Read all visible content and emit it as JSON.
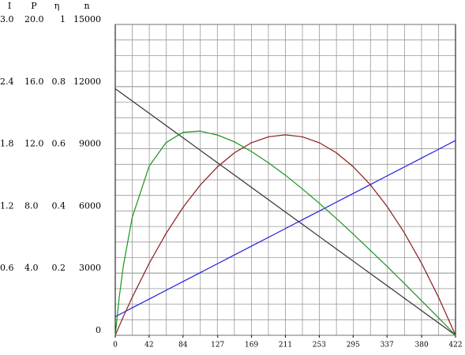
{
  "chart_data": {
    "type": "line",
    "y_axes": [
      {
        "label": "I",
        "ylim": [
          0,
          3
        ],
        "yticks": [
          {
            "value": 0.6,
            "label": "0.6"
          },
          {
            "value": 1.2,
            "label": "1.2"
          },
          {
            "value": 1.8,
            "label": "1.8"
          },
          {
            "value": 2.4,
            "label": "2.4"
          },
          {
            "value": 3,
            "label": "3.0"
          }
        ]
      },
      {
        "label": "P",
        "ylim": [
          0,
          20
        ],
        "yticks": [
          {
            "value": 4,
            "label": "4.0"
          },
          {
            "value": 8,
            "label": "8.0"
          },
          {
            "value": 12,
            "label": "12.0"
          },
          {
            "value": 16,
            "label": "16.0"
          },
          {
            "value": 20,
            "label": "20.0"
          }
        ]
      },
      {
        "label": "η",
        "ylim": [
          0,
          1
        ],
        "yticks": [
          0.2,
          0.4,
          0.6,
          0.8,
          1
        ]
      },
      {
        "label": "n",
        "ylim": [
          0,
          15000
        ],
        "yticks": [
          0,
          3000,
          6000,
          9000,
          12000,
          15000
        ]
      }
    ],
    "xlim": [
      0,
      422
    ],
    "xticks": [
      0,
      42,
      84,
      127,
      169,
      211,
      253,
      295,
      337,
      380,
      422
    ],
    "grid": true,
    "x": [
      0,
      5,
      10,
      21,
      42,
      63,
      84,
      105,
      127,
      148,
      169,
      190,
      211,
      232,
      253,
      274,
      295,
      316,
      337,
      358,
      380,
      401,
      422
    ],
    "series": [
      {
        "name": "n",
        "axis": 3,
        "color": "#333333",
        "values": [
          11900,
          11760,
          11618,
          11307,
          10716,
          10124,
          9531,
          8939,
          8319,
          7727,
          7134,
          6542,
          5950,
          5357,
          4766,
          4173,
          3581,
          2989,
          2397,
          1805,
          1184,
          593,
          0
        ]
      },
      {
        "name": "I",
        "axis": 0,
        "color": "#1f1fe0",
        "values": [
          0.18,
          0.2,
          0.22,
          0.265,
          0.349,
          0.434,
          0.518,
          0.603,
          0.692,
          0.776,
          0.861,
          0.945,
          1.03,
          1.115,
          1.199,
          1.284,
          1.368,
          1.453,
          1.538,
          1.622,
          1.711,
          1.795,
          1.88
        ]
      },
      {
        "name": "P",
        "axis": 1,
        "color": "#8b1a1a",
        "values": [
          0,
          0.6,
          1.19,
          2.44,
          4.62,
          6.55,
          8.23,
          9.64,
          10.85,
          11.75,
          12.39,
          12.77,
          12.9,
          12.77,
          12.39,
          11.75,
          10.85,
          9.71,
          8.3,
          6.64,
          4.62,
          2.44,
          0
        ]
      },
      {
        "name": "η",
        "axis": 2,
        "color": "#1a961a",
        "values": [
          0,
          0.124,
          0.223,
          0.379,
          0.544,
          0.62,
          0.653,
          0.657,
          0.644,
          0.622,
          0.591,
          0.555,
          0.515,
          0.471,
          0.425,
          0.376,
          0.326,
          0.274,
          0.222,
          0.168,
          0.111,
          0.056,
          0
        ]
      }
    ]
  }
}
